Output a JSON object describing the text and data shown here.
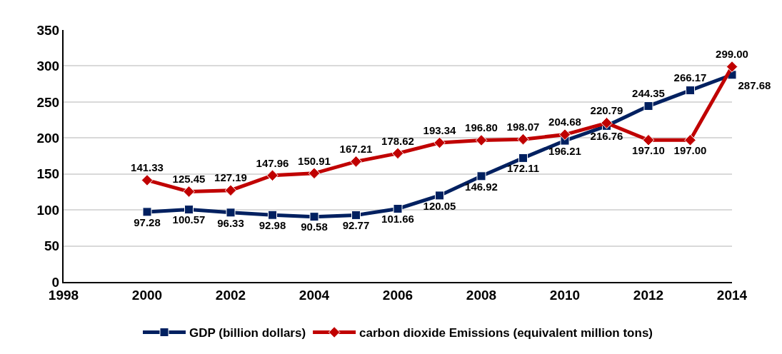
{
  "chart_data": {
    "type": "line",
    "x": [
      2000,
      2001,
      2002,
      2003,
      2004,
      2005,
      2006,
      2007,
      2008,
      2009,
      2010,
      2011,
      2012,
      2013,
      2014
    ],
    "xlim": [
      1998,
      2014
    ],
    "xticks": [
      1998,
      2000,
      2002,
      2004,
      2006,
      2008,
      2010,
      2012,
      2014
    ],
    "ylim": [
      0,
      350
    ],
    "yticks": [
      0,
      50,
      100,
      150,
      200,
      250,
      300,
      350
    ],
    "grid": "y",
    "legend": "bottom",
    "line_style": "solid",
    "series": [
      {
        "name": "GDP (billion dollars)",
        "color": "#002060",
        "marker": "square",
        "values": [
          97.28,
          100.57,
          96.33,
          92.98,
          90.58,
          92.77,
          101.66,
          120.05,
          146.92,
          172.11,
          196.21,
          216.76,
          244.35,
          266.17,
          287.68
        ],
        "value_labels": [
          "97.28",
          "100.57",
          "96.33",
          "92.98",
          "90.58",
          "92.77",
          "101.66",
          "120.05",
          "146.92",
          "172.11",
          "196.21",
          "216.76",
          "244.35",
          "266.17",
          "287.68"
        ]
      },
      {
        "name": "carbon dioxide Emissions (equivalent million tons)",
        "color": "#c00000",
        "marker": "diamond",
        "values": [
          141.33,
          125.45,
          127.19,
          147.96,
          150.91,
          167.21,
          178.62,
          193.34,
          196.8,
          198.07,
          204.68,
          220.79,
          197.1,
          197.0,
          299.0
        ],
        "value_labels": [
          "141.33",
          "125.45",
          "127.19",
          "147.96",
          "150.91",
          "167.21",
          "178.62",
          "193.34",
          "196.80",
          "198.07",
          "204.68",
          "220.79",
          "197.10",
          "197.00",
          "299.00"
        ]
      }
    ]
  }
}
